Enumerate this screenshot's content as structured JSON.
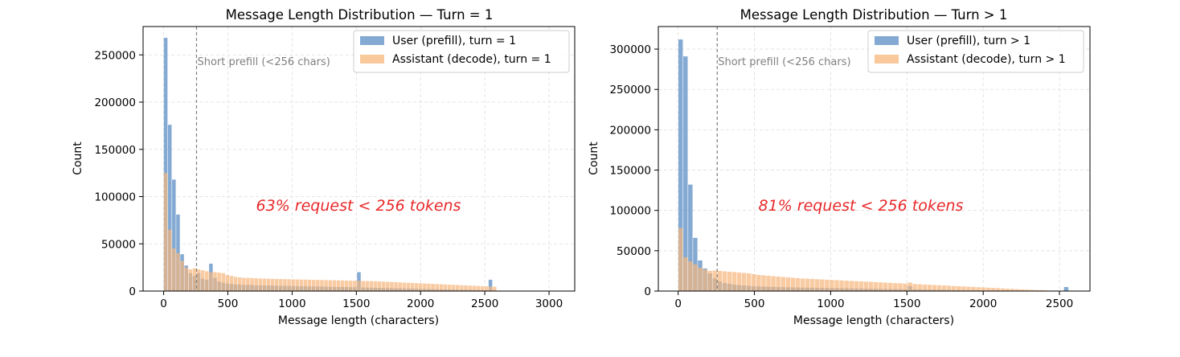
{
  "colors": {
    "user": "#6f9bcb",
    "assistant": "#f7b57a",
    "grid": "#dddddd",
    "refline": "#7f7f7f",
    "annotation": "#e8282a"
  },
  "chart_data": [
    {
      "type": "bar",
      "title": "Message Length Distribution — Turn = 1",
      "xlabel": "Message length (characters)",
      "ylabel": "Count",
      "xlim": [
        -160,
        3200
      ],
      "ylim": [
        0,
        280000
      ],
      "xticks": [
        0,
        500,
        1000,
        1500,
        2000,
        2500,
        3000
      ],
      "xtick_labels": [
        "0",
        "500",
        "1000",
        "1500",
        "2000",
        "2500",
        "3000"
      ],
      "yticks": [
        0,
        50000,
        100000,
        150000,
        200000,
        250000
      ],
      "ytick_labels": [
        "0",
        "50000",
        "100000",
        "150000",
        "200000",
        "250000"
      ],
      "grid": true,
      "legend_position": "top-right",
      "bin_width": 32,
      "x": [
        16,
        48,
        80,
        112,
        144,
        176,
        208,
        240,
        272,
        304,
        336,
        368,
        400,
        432,
        464,
        496,
        528,
        560,
        592,
        624,
        656,
        688,
        720,
        752,
        784,
        816,
        848,
        880,
        912,
        944,
        976,
        1008,
        1040,
        1072,
        1104,
        1136,
        1168,
        1200,
        1232,
        1264,
        1296,
        1328,
        1360,
        1392,
        1424,
        1456,
        1488,
        1520,
        1552,
        1584,
        1616,
        1648,
        1680,
        1712,
        1744,
        1776,
        1808,
        1840,
        1872,
        1904,
        1936,
        1968,
        2000,
        2032,
        2064,
        2096,
        2128,
        2160,
        2192,
        2224,
        2256,
        2288,
        2320,
        2352,
        2384,
        2416,
        2448,
        2480,
        2512,
        2544,
        2576
      ],
      "series": [
        {
          "name": "User (prefill), turn = 1",
          "values": [
            268000,
            176000,
            118000,
            81000,
            39000,
            27000,
            19000,
            16000,
            19000,
            13000,
            12000,
            29000,
            14000,
            10000,
            9000,
            8000,
            7500,
            7000,
            7000,
            6500,
            6500,
            6500,
            6000,
            6000,
            6000,
            6000,
            5800,
            5700,
            5600,
            5500,
            5400,
            5300,
            5200,
            5100,
            5000,
            5000,
            4900,
            4800,
            4700,
            4600,
            4500,
            4400,
            4300,
            4300,
            4200,
            4100,
            4000,
            20000,
            3800,
            3700,
            3600,
            3500,
            3400,
            3300,
            3200,
            3100,
            3000,
            2900,
            2800,
            2700,
            2600,
            2500,
            2400,
            2300,
            2200,
            2100,
            2000,
            1900,
            1800,
            1700,
            1600,
            1500,
            1400,
            1300,
            1200,
            1100,
            1000,
            900,
            800,
            12000,
            600
          ]
        },
        {
          "name": "Assistant (decode), turn = 1",
          "values": [
            125000,
            65000,
            45000,
            40000,
            32000,
            25000,
            23000,
            24000,
            23000,
            22000,
            21000,
            20000,
            20000,
            19500,
            19000,
            17000,
            16000,
            15000,
            14500,
            14000,
            14000,
            13800,
            13500,
            13300,
            13100,
            13000,
            12900,
            12800,
            12700,
            12600,
            12500,
            12400,
            12300,
            12200,
            12100,
            12000,
            11900,
            11800,
            11700,
            11600,
            11500,
            11400,
            11300,
            11200,
            11100,
            11000,
            10900,
            11000,
            10700,
            10600,
            10500,
            10400,
            10200,
            10000,
            9800,
            9600,
            9400,
            9200,
            9000,
            8800,
            8600,
            8400,
            8200,
            8000,
            7800,
            7600,
            7400,
            7200,
            7000,
            6800,
            6600,
            6400,
            6200,
            6000,
            5800,
            5600,
            5400,
            5200,
            5000,
            4800,
            4600
          ]
        }
      ],
      "reference_line": {
        "x": 256,
        "label": "Short prefill (<256 chars)"
      },
      "annotation": "63% request < 256 tokens"
    },
    {
      "type": "bar",
      "title": "Message Length Distribution — Turn > 1",
      "xlabel": "Message length (characters)",
      "ylabel": "Count",
      "xlim": [
        -130,
        2700
      ],
      "ylim": [
        0,
        328000
      ],
      "xticks": [
        0,
        500,
        1000,
        1500,
        2000,
        2500
      ],
      "xtick_labels": [
        "0",
        "500",
        "1000",
        "1500",
        "2000",
        "2500"
      ],
      "yticks": [
        0,
        50000,
        100000,
        150000,
        200000,
        250000,
        300000
      ],
      "ytick_labels": [
        "0",
        "50000",
        "100000",
        "150000",
        "200000",
        "250000",
        "300000"
      ],
      "grid": true,
      "legend_position": "top-right",
      "bin_width": 32,
      "x": [
        16,
        48,
        80,
        112,
        144,
        176,
        208,
        240,
        272,
        304,
        336,
        368,
        400,
        432,
        464,
        496,
        528,
        560,
        592,
        624,
        656,
        688,
        720,
        752,
        784,
        816,
        848,
        880,
        912,
        944,
        976,
        1008,
        1040,
        1072,
        1104,
        1136,
        1168,
        1200,
        1232,
        1264,
        1296,
        1328,
        1360,
        1392,
        1424,
        1456,
        1488,
        1520,
        1552,
        1584,
        1616,
        1648,
        1680,
        1712,
        1744,
        1776,
        1808,
        1840,
        1872,
        1904,
        1936,
        1968,
        2000,
        2032,
        2064,
        2096,
        2128,
        2160,
        2192,
        2224,
        2256,
        2288,
        2320,
        2352,
        2384,
        2416,
        2448,
        2480,
        2512,
        2544,
        2576
      ],
      "series": [
        {
          "name": "User (prefill), turn > 1",
          "values": [
            312000,
            291000,
            132000,
            66000,
            38000,
            28000,
            22000,
            16000,
            12000,
            10000,
            9000,
            8000,
            7500,
            7000,
            6500,
            6000,
            5800,
            5500,
            5300,
            5100,
            5000,
            4800,
            4600,
            4500,
            4400,
            4300,
            4200,
            4100,
            4000,
            3900,
            3800,
            3700,
            3600,
            3500,
            3400,
            3300,
            3200,
            3100,
            3000,
            2900,
            2800,
            2700,
            2600,
            2500,
            2400,
            2300,
            2200,
            6000,
            2100,
            2000,
            1900,
            1800,
            1700,
            1600,
            1500,
            1400,
            1300,
            1200,
            1100,
            1000,
            950,
            900,
            850,
            800,
            750,
            700,
            650,
            600,
            550,
            500,
            450,
            400,
            380,
            360,
            340,
            320,
            300,
            280,
            260,
            5000,
            240
          ]
        },
        {
          "name": "Assistant (decode), turn > 1",
          "values": [
            78000,
            42000,
            37000,
            33000,
            29000,
            27000,
            25000,
            25500,
            25000,
            24500,
            24000,
            23500,
            23000,
            22500,
            22000,
            21000,
            20000,
            19500,
            19000,
            18500,
            18000,
            17500,
            17000,
            16500,
            16000,
            15600,
            15300,
            15000,
            14700,
            14400,
            14100,
            13800,
            13500,
            13200,
            12900,
            12600,
            12300,
            12000,
            11700,
            11400,
            11100,
            10800,
            10500,
            10200,
            9900,
            9600,
            9300,
            10500,
            8700,
            8400,
            8100,
            7800,
            7500,
            7200,
            6900,
            6600,
            6300,
            6000,
            5700,
            5400,
            5100,
            4800,
            4500,
            4200,
            3900,
            3600,
            3300,
            3000,
            2700,
            2400,
            2100,
            1800,
            1500,
            1200,
            1000,
            800,
            600,
            500,
            400,
            300,
            200
          ]
        }
      ],
      "reference_line": {
        "x": 256,
        "label": "Short prefill (<256 chars)"
      },
      "annotation": "81% request < 256 tokens"
    }
  ]
}
